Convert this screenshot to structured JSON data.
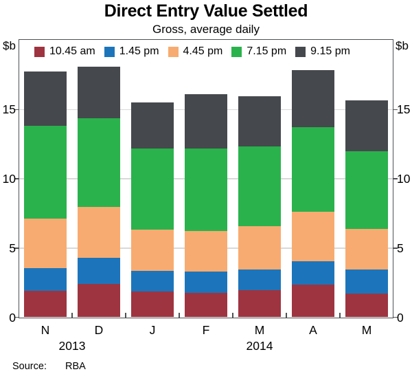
{
  "title": "Direct Entry Value Settled",
  "subtitle": "Gross, average daily",
  "y_unit_left": "$b",
  "y_unit_right": "$b",
  "source": {
    "label": "Source:",
    "value": "RBA"
  },
  "chart_data": {
    "type": "bar",
    "stacked": true,
    "title": "Direct Entry Value Settled",
    "subtitle": "Gross, average daily",
    "ylabel": "$b",
    "ylim": [
      0,
      20
    ],
    "yticks": [
      0,
      5,
      10,
      15
    ],
    "grid": true,
    "legend_position": "top-inside",
    "categories": [
      "N",
      "D",
      "J",
      "F",
      "M",
      "A",
      "M"
    ],
    "year_annotations": [
      {
        "label": "2013",
        "slot": 0.5
      },
      {
        "label": "2014",
        "slot": 4
      }
    ],
    "series": [
      {
        "name": "10.45 am",
        "color": "#9e3440",
        "values": [
          1.9,
          2.4,
          1.85,
          1.75,
          1.95,
          2.35,
          1.7
        ]
      },
      {
        "name": "1.45 pm",
        "color": "#1c75bb",
        "values": [
          1.65,
          1.9,
          1.5,
          1.55,
          1.5,
          1.7,
          1.75
        ]
      },
      {
        "name": "4.45 pm",
        "color": "#f8ab70",
        "values": [
          3.55,
          3.65,
          3.0,
          2.95,
          3.15,
          3.55,
          2.95
        ]
      },
      {
        "name": "7.15 pm",
        "color": "#2ab24d",
        "values": [
          6.7,
          6.4,
          5.85,
          5.95,
          5.75,
          6.1,
          5.6
        ]
      },
      {
        "name": "9.15 pm",
        "color": "#45484c",
        "values": [
          3.95,
          3.75,
          3.3,
          3.9,
          3.6,
          4.15,
          3.65
        ]
      }
    ]
  }
}
